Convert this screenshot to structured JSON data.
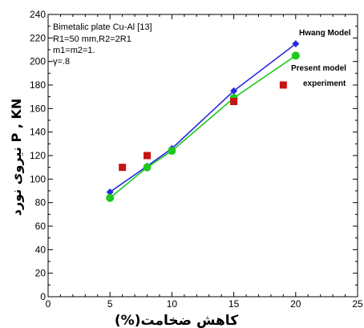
{
  "chart_data": {
    "type": "line",
    "xlabel": "(%)کاهش ضخامت",
    "ylabel": "نیروی نورد  P , KN",
    "xlim": [
      0,
      25
    ],
    "ylim": [
      0,
      240
    ],
    "xticks": [
      0,
      5,
      10,
      15,
      20,
      25
    ],
    "yticks": [
      0,
      20,
      40,
      60,
      80,
      100,
      120,
      140,
      160,
      180,
      200,
      220,
      240
    ],
    "grid": false,
    "annotations": [
      "Bimetalic plate Cu-Al [13]",
      "R1=50 mm,R2=2R1",
      "m1=m2=1.",
      "γ=.8"
    ],
    "series": [
      {
        "name": "Hwang Model",
        "marker": "diamond",
        "color": "#2a2ae0",
        "line": true,
        "x": [
          5,
          8,
          10,
          15,
          20
        ],
        "y": [
          89,
          111,
          126,
          175,
          215
        ]
      },
      {
        "name": "Present model",
        "marker": "circle",
        "color": "#1ec81e",
        "line": true,
        "x": [
          5,
          8,
          10,
          15,
          20
        ],
        "y": [
          84,
          110,
          124,
          169,
          205
        ]
      },
      {
        "name": "experiment",
        "marker": "square",
        "color": "#c81414",
        "line": false,
        "x": [
          6,
          8,
          15,
          19
        ],
        "y": [
          110,
          120,
          166,
          180
        ]
      }
    ]
  }
}
